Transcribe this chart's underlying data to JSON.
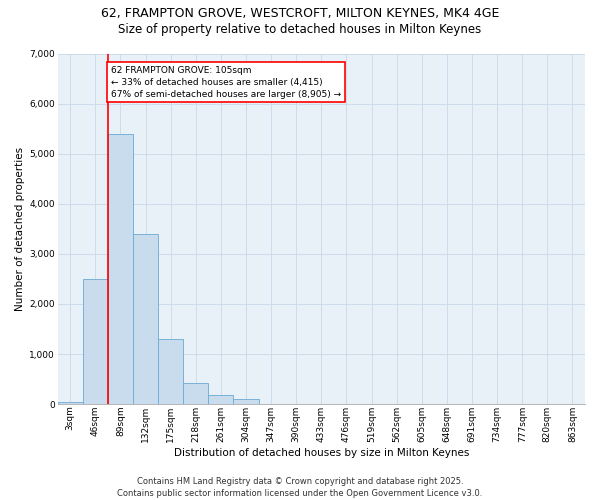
{
  "title_line1": "62, FRAMPTON GROVE, WESTCROFT, MILTON KEYNES, MK4 4GE",
  "title_line2": "Size of property relative to detached houses in Milton Keynes",
  "xlabel": "Distribution of detached houses by size in Milton Keynes",
  "ylabel": "Number of detached properties",
  "bin_labels": [
    "3sqm",
    "46sqm",
    "89sqm",
    "132sqm",
    "175sqm",
    "218sqm",
    "261sqm",
    "304sqm",
    "347sqm",
    "390sqm",
    "433sqm",
    "476sqm",
    "519sqm",
    "562sqm",
    "605sqm",
    "648sqm",
    "691sqm",
    "734sqm",
    "777sqm",
    "820sqm",
    "863sqm"
  ],
  "bar_values": [
    50,
    2500,
    5400,
    3400,
    1300,
    420,
    175,
    100,
    0,
    0,
    0,
    0,
    0,
    0,
    0,
    0,
    0,
    0,
    0,
    0,
    0
  ],
  "bar_color": "#c9dcee",
  "bar_edge_color": "#6aaad4",
  "grid_color": "#c8d8e8",
  "bg_color": "#e8f0f8",
  "vline_color": "red",
  "vline_x_index": 2,
  "annotation_text": "62 FRAMPTON GROVE: 105sqm\n← 33% of detached houses are smaller (4,415)\n67% of semi-detached houses are larger (8,905) →",
  "annotation_box_facecolor": "white",
  "annotation_box_edgecolor": "red",
  "ylim": [
    0,
    7000
  ],
  "yticks": [
    0,
    1000,
    2000,
    3000,
    4000,
    5000,
    6000,
    7000
  ],
  "title_fontsize": 9,
  "subtitle_fontsize": 8.5,
  "label_fontsize": 7.5,
  "tick_fontsize": 6.5,
  "annotation_fontsize": 6.5,
  "footer_fontsize": 6,
  "footer_text": "Contains HM Land Registry data © Crown copyright and database right 2025.\nContains public sector information licensed under the Open Government Licence v3.0."
}
